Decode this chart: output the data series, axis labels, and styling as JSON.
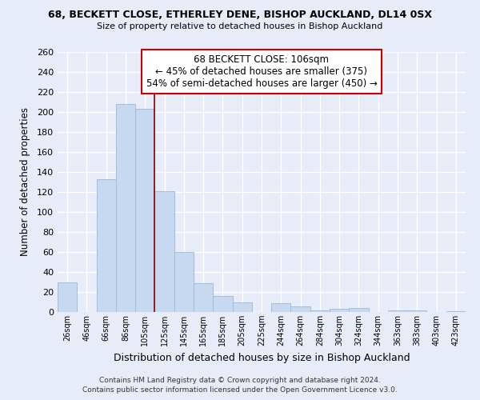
{
  "title": "68, BECKETT CLOSE, ETHERLEY DENE, BISHOP AUCKLAND, DL14 0SX",
  "subtitle": "Size of property relative to detached houses in Bishop Auckland",
  "xlabel": "Distribution of detached houses by size in Bishop Auckland",
  "ylabel": "Number of detached properties",
  "bar_color": "#c6d9f0",
  "bar_edge_color": "#9ab8d8",
  "categories": [
    "26sqm",
    "46sqm",
    "66sqm",
    "86sqm",
    "105sqm",
    "125sqm",
    "145sqm",
    "165sqm",
    "185sqm",
    "205sqm",
    "225sqm",
    "244sqm",
    "264sqm",
    "284sqm",
    "304sqm",
    "324sqm",
    "344sqm",
    "363sqm",
    "383sqm",
    "403sqm",
    "423sqm"
  ],
  "values": [
    30,
    0,
    133,
    208,
    203,
    121,
    60,
    29,
    16,
    10,
    0,
    9,
    6,
    2,
    3,
    4,
    0,
    2,
    2,
    0,
    1
  ],
  "ylim": [
    0,
    260
  ],
  "yticks": [
    0,
    20,
    40,
    60,
    80,
    100,
    120,
    140,
    160,
    180,
    200,
    220,
    240,
    260
  ],
  "annotation_title": "68 BECKETT CLOSE: 106sqm",
  "annotation_line1": "← 45% of detached houses are smaller (375)",
  "annotation_line2": "54% of semi-detached houses are larger (450) →",
  "property_line_index": 4,
  "footnote1": "Contains HM Land Registry data © Crown copyright and database right 2024.",
  "footnote2": "Contains public sector information licensed under the Open Government Licence v3.0.",
  "background_color": "#e8ecf8",
  "grid_color": "#ffffff",
  "annotation_box_color": "#cc0000",
  "vline_color": "#8b0000"
}
